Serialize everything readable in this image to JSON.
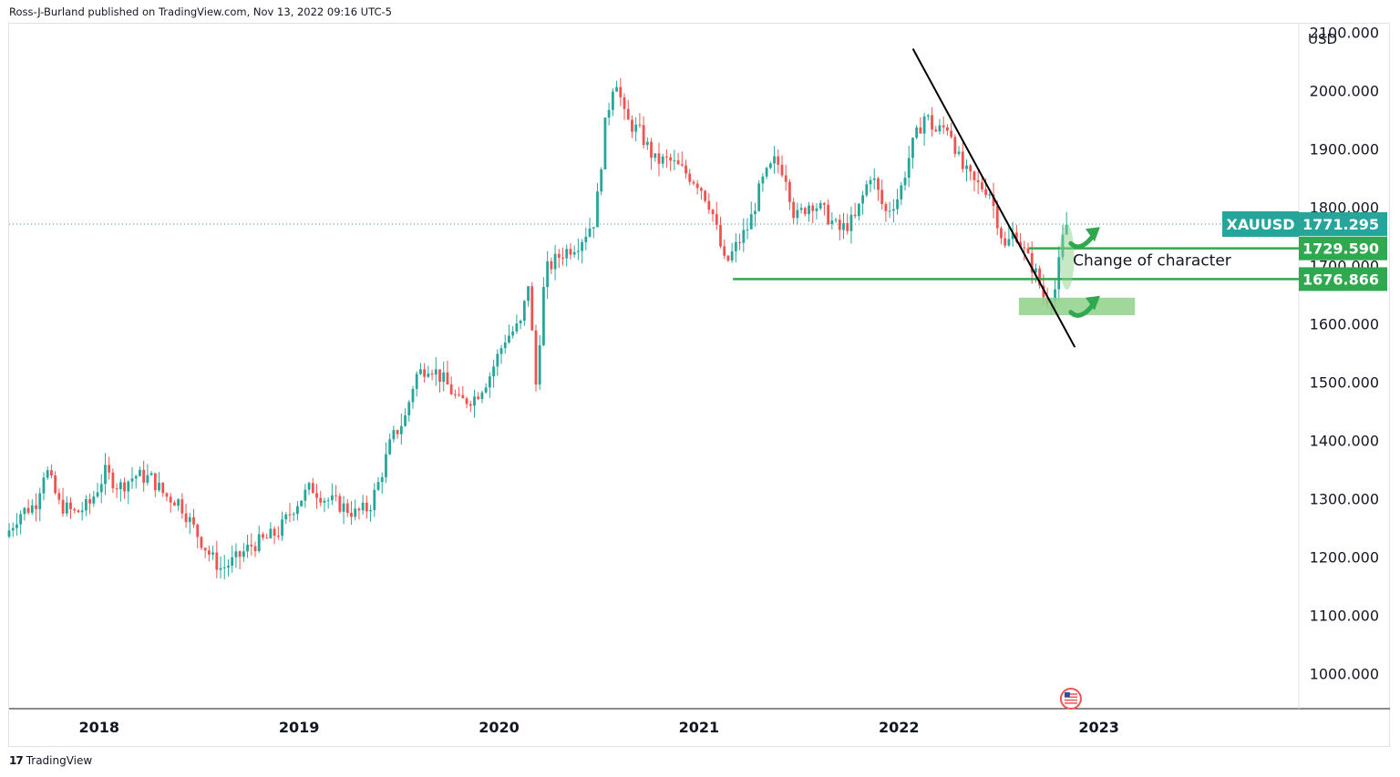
{
  "header": {
    "text": "Ross-J-Burland published on TradingView.com, Nov 13, 2022 09:16 UTC-5"
  },
  "footer": {
    "logo": "17",
    "brand": "TradingView"
  },
  "colors": {
    "up": "#26a69a",
    "down": "#ef5350",
    "level": "#2fa84f",
    "trend": "#000000",
    "zone": "#8fd18b",
    "grid": "#e0e3eb",
    "pointer": "#2fa84f"
  },
  "chart_data": {
    "type": "candlestick",
    "symbol": "XAUUSD",
    "timeframe": "weekly",
    "y_axis_label": "USD",
    "y_ticks": [
      1000,
      1100,
      1200,
      1300,
      1400,
      1500,
      1600,
      1700,
      1800,
      1900,
      2000,
      2100
    ],
    "y_tick_labels": [
      "1000.000",
      "1100.000",
      "1200.000",
      "1300.000",
      "1400.000",
      "1500.000",
      "1600.000",
      "1700.000",
      "1800.000",
      "1900.000",
      "2000.000",
      "2100.000"
    ],
    "x_tick_labels": [
      "2018",
      "2019",
      "2020",
      "2021",
      "2022",
      "2023"
    ],
    "x_ticks": [
      2018.0,
      2019.0,
      2020.0,
      2021.0,
      2022.0,
      2023.0
    ],
    "x_range": [
      2017.55,
      2023.0
    ],
    "x_domain_end": 2024.0,
    "ylim": [
      940,
      2115
    ],
    "last_price": 1771.295,
    "levels": [
      {
        "value": 1729.59,
        "label": "1729.590",
        "from": 2022.65
      },
      {
        "value": 1676.866,
        "label": "1676.866",
        "from": 2021.17
      }
    ],
    "price_label": {
      "name": "XAUUSD",
      "value": "1771.295"
    },
    "trendline": {
      "from": [
        2022.07,
        2072
      ],
      "to": [
        2022.88,
        1560
      ]
    },
    "zone": {
      "from": 2022.6,
      "to": 2023.18,
      "high": 1645,
      "low": 1615
    },
    "annotation": "Change of character",
    "path": [
      [
        2017.55,
        1235
      ],
      [
        2017.62,
        1275
      ],
      [
        2017.7,
        1290
      ],
      [
        2017.75,
        1355
      ],
      [
        2017.82,
        1290
      ],
      [
        2017.9,
        1275
      ],
      [
        2017.97,
        1290
      ],
      [
        2018.05,
        1345
      ],
      [
        2018.12,
        1320
      ],
      [
        2018.2,
        1340
      ],
      [
        2018.28,
        1335
      ],
      [
        2018.35,
        1305
      ],
      [
        2018.42,
        1295
      ],
      [
        2018.5,
        1245
      ],
      [
        2018.58,
        1200
      ],
      [
        2018.63,
        1180
      ],
      [
        2018.7,
        1195
      ],
      [
        2018.78,
        1220
      ],
      [
        2018.85,
        1230
      ],
      [
        2018.92,
        1245
      ],
      [
        2019.0,
        1290
      ],
      [
        2019.08,
        1320
      ],
      [
        2019.15,
        1300
      ],
      [
        2019.22,
        1290
      ],
      [
        2019.3,
        1275
      ],
      [
        2019.37,
        1285
      ],
      [
        2019.42,
        1330
      ],
      [
        2019.48,
        1400
      ],
      [
        2019.55,
        1440
      ],
      [
        2019.6,
        1510
      ],
      [
        2019.67,
        1530
      ],
      [
        2019.75,
        1500
      ],
      [
        2019.82,
        1465
      ],
      [
        2019.9,
        1475
      ],
      [
        2019.97,
        1510
      ],
      [
        2020.05,
        1575
      ],
      [
        2020.13,
        1600
      ],
      [
        2020.17,
        1680
      ],
      [
        2020.2,
        1480
      ],
      [
        2020.25,
        1690
      ],
      [
        2020.33,
        1720
      ],
      [
        2020.42,
        1740
      ],
      [
        2020.5,
        1780
      ],
      [
        2020.55,
        1940
      ],
      [
        2020.6,
        2030
      ],
      [
        2020.65,
        1950
      ],
      [
        2020.72,
        1930
      ],
      [
        2020.8,
        1880
      ],
      [
        2020.87,
        1880
      ],
      [
        2020.95,
        1860
      ],
      [
        2021.02,
        1840
      ],
      [
        2021.08,
        1800
      ],
      [
        2021.15,
        1700
      ],
      [
        2021.2,
        1730
      ],
      [
        2021.27,
        1770
      ],
      [
        2021.33,
        1840
      ],
      [
        2021.4,
        1880
      ],
      [
        2021.45,
        1860
      ],
      [
        2021.5,
        1780
      ],
      [
        2021.58,
        1810
      ],
      [
        2021.65,
        1790
      ],
      [
        2021.72,
        1760
      ],
      [
        2021.8,
        1780
      ],
      [
        2021.88,
        1860
      ],
      [
        2021.95,
        1790
      ],
      [
        2022.02,
        1820
      ],
      [
        2022.08,
        1900
      ],
      [
        2022.15,
        1960
      ],
      [
        2022.2,
        1930
      ],
      [
        2022.27,
        1940
      ],
      [
        2022.33,
        1870
      ],
      [
        2022.4,
        1840
      ],
      [
        2022.47,
        1830
      ],
      [
        2022.55,
        1730
      ],
      [
        2022.6,
        1760
      ],
      [
        2022.65,
        1720
      ],
      [
        2022.7,
        1690
      ],
      [
        2022.75,
        1640
      ],
      [
        2022.8,
        1660
      ],
      [
        2022.85,
        1770
      ]
    ]
  }
}
